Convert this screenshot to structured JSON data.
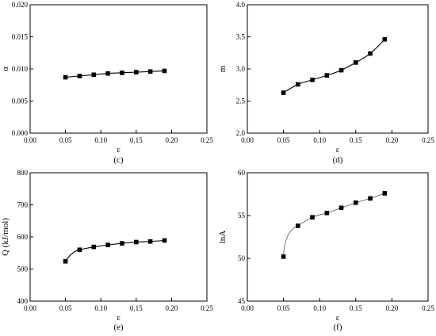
{
  "chart_data": [
    {
      "type": "line",
      "caption": "(c)",
      "xlabel": "ε",
      "ylabel": "α",
      "xlim": [
        0.0,
        0.25
      ],
      "ylim": [
        0.0,
        0.02
      ],
      "xticks": [
        "0.00",
        "0.05",
        "0.10",
        "0.15",
        "0.20",
        "0.25"
      ],
      "yticks": [
        "0.000",
        "0.005",
        "0.010",
        "0.015",
        "0.020"
      ],
      "grid": false,
      "series": [
        {
          "x": [
            0.05,
            0.07,
            0.09,
            0.11,
            0.13,
            0.15,
            0.17,
            0.19
          ],
          "y": [
            0.0087,
            0.0089,
            0.0091,
            0.0093,
            0.0094,
            0.0095,
            0.0096,
            0.0097
          ]
        }
      ]
    },
    {
      "type": "line",
      "caption": "(d)",
      "xlabel": "ε",
      "ylabel": "m",
      "xlim": [
        0.0,
        0.25
      ],
      "ylim": [
        2.0,
        4.0
      ],
      "xticks": [
        "0.00",
        "0.05",
        "0.10",
        "0.15",
        "0.20",
        "0.25"
      ],
      "yticks": [
        "2.0",
        "2.5",
        "3.0",
        "3.5",
        "4.0"
      ],
      "grid": false,
      "series": [
        {
          "x": [
            0.05,
            0.07,
            0.09,
            0.11,
            0.13,
            0.15,
            0.17,
            0.19
          ],
          "y": [
            2.63,
            2.76,
            2.83,
            2.9,
            2.98,
            3.1,
            3.24,
            3.46
          ]
        }
      ]
    },
    {
      "type": "line",
      "caption": "(e)",
      "xlabel": "ε",
      "ylabel": "Q (kJ/mol)",
      "xlim": [
        0.0,
        0.25
      ],
      "ylim": [
        400,
        800
      ],
      "xticks": [
        "0.00",
        "0.05",
        "0.10",
        "0.15",
        "0.20",
        "0.25"
      ],
      "yticks": [
        "400",
        "500",
        "600",
        "700",
        "800"
      ],
      "grid": false,
      "series": [
        {
          "x": [
            0.05,
            0.07,
            0.09,
            0.11,
            0.13,
            0.15,
            0.17,
            0.19
          ],
          "y": [
            524,
            560,
            569,
            575,
            580,
            584,
            586,
            589
          ]
        }
      ]
    },
    {
      "type": "line",
      "caption": "(f)",
      "xlabel": "ε",
      "ylabel": "lnA",
      "xlim": [
        0.0,
        0.25
      ],
      "ylim": [
        45,
        60
      ],
      "xticks": [
        "0.00",
        "0.05",
        "0.10",
        "0.15",
        "0.20",
        "0.25"
      ],
      "yticks": [
        "45",
        "50",
        "55",
        "60"
      ],
      "grid": false,
      "series": [
        {
          "x": [
            0.05,
            0.07,
            0.09,
            0.11,
            0.13,
            0.15,
            0.17,
            0.19
          ],
          "y": [
            50.2,
            53.8,
            54.8,
            55.3,
            55.9,
            56.5,
            57.0,
            57.6
          ]
        }
      ]
    }
  ]
}
